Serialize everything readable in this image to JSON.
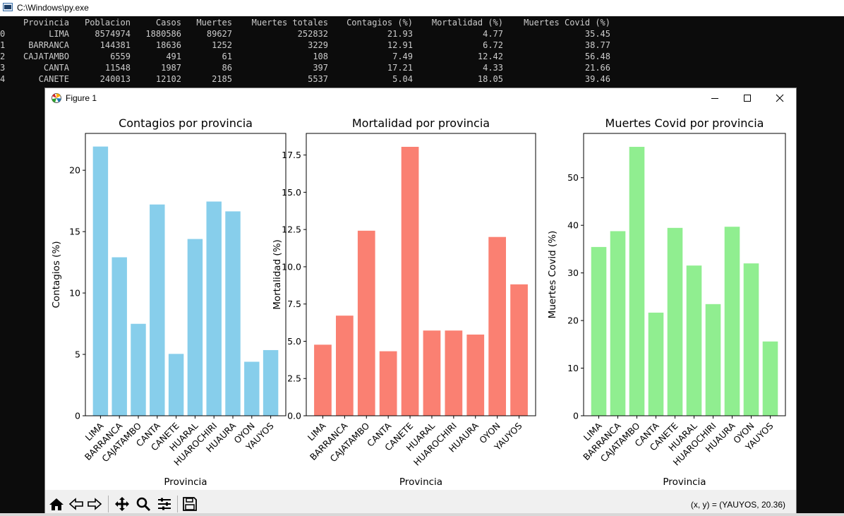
{
  "console": {
    "title": "C:\\Windows\\py.exe",
    "headers": [
      "",
      "Provincia",
      "Poblacion",
      "Casos",
      "Muertes",
      "Muertes totales",
      "Contagios (%)",
      "Mortalidad (%)",
      "Muertes Covid (%)"
    ],
    "rows": [
      [
        "0",
        "LIMA",
        "8574974",
        "1880586",
        "89627",
        "252832",
        "21.93",
        "4.77",
        "35.45"
      ],
      [
        "1",
        "BARRANCA",
        "144381",
        "18636",
        "1252",
        "3229",
        "12.91",
        "6.72",
        "38.77"
      ],
      [
        "2",
        "CAJATAMBO",
        "6559",
        "491",
        "61",
        "108",
        "7.49",
        "12.42",
        "56.48"
      ],
      [
        "3",
        "CANTA",
        "11548",
        "1987",
        "86",
        "397",
        "17.21",
        "4.33",
        "21.66"
      ],
      [
        "4",
        "CANETE",
        "240013",
        "12102",
        "2185",
        "5537",
        "5.04",
        "18.05",
        "39.46"
      ]
    ]
  },
  "figure": {
    "title": "Figure 1",
    "status": "(x, y) = (YAUYOS, 20.36)"
  },
  "toolbar": {
    "icons": [
      "home-icon",
      "back-icon",
      "forward-icon",
      "pan-icon",
      "zoom-icon",
      "configure-icon",
      "save-icon"
    ]
  },
  "chart_data": [
    {
      "type": "bar",
      "title": "Contagios por provincia",
      "xlabel": "Provincia",
      "ylabel": "Contagios (%)",
      "categories": [
        "LIMA",
        "BARRANCA",
        "CAJATAMBO",
        "CANTA",
        "CANETE",
        "HUARAL",
        "HUAROCHIRI",
        "HUAURA",
        "OYON",
        "YAUYOS"
      ],
      "values": [
        21.93,
        12.91,
        7.49,
        17.21,
        5.04,
        14.4,
        17.45,
        16.65,
        4.4,
        5.35
      ],
      "ylim": [
        0,
        23.0
      ],
      "yticks": [
        0,
        5,
        10,
        15,
        20
      ],
      "ytick_labels": [
        "0",
        "5",
        "10",
        "15",
        "20"
      ],
      "color": "#87ceeb",
      "grid": false
    },
    {
      "type": "bar",
      "title": "Mortalidad por provincia",
      "xlabel": "Provincia",
      "ylabel": "Mortalidad (%)",
      "categories": [
        "LIMA",
        "BARRANCA",
        "CAJATAMBO",
        "CANTA",
        "CANETE",
        "HUARAL",
        "HUAROCHIRI",
        "HUAURA",
        "OYON",
        "YAUYOS"
      ],
      "values": [
        4.77,
        6.72,
        12.42,
        4.33,
        18.05,
        5.72,
        5.72,
        5.45,
        12.0,
        8.82
      ],
      "ylim": [
        0,
        18.95
      ],
      "yticks": [
        0,
        2.5,
        5,
        7.5,
        10,
        12.5,
        15,
        17.5
      ],
      "ytick_labels": [
        "0.0",
        "2.5",
        "5.0",
        "7.5",
        "10.0",
        "12.5",
        "15.0",
        "17.5"
      ],
      "color": "#fa8072",
      "grid": false
    },
    {
      "type": "bar",
      "title": "Muertes Covid por provincia",
      "xlabel": "Provincia",
      "ylabel": "Muertes Covid (%)",
      "categories": [
        "LIMA",
        "BARRANCA",
        "CAJATAMBO",
        "CANTA",
        "CANETE",
        "HUARAL",
        "HUAROCHIRI",
        "HUAURA",
        "OYON",
        "YAUYOS"
      ],
      "values": [
        35.45,
        38.77,
        56.48,
        21.66,
        39.46,
        31.55,
        23.45,
        39.7,
        32.0,
        15.6
      ],
      "ylim": [
        0,
        59.3
      ],
      "yticks": [
        0,
        10,
        20,
        30,
        40,
        50
      ],
      "ytick_labels": [
        "0",
        "10",
        "20",
        "30",
        "40",
        "50"
      ],
      "color": "#90ee90",
      "grid": false
    }
  ]
}
